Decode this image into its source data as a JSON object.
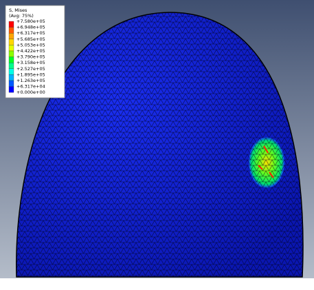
{
  "legend": {
    "title": "S, Mises",
    "subtitle": "(Avg: 75%)",
    "labels": [
      "+7.580e+05",
      "+6.948e+05",
      "+6.317e+05",
      "+5.685e+05",
      "+5.053e+05",
      "+4.422e+05",
      "+3.790e+05",
      "+3.158e+05",
      "+2.527e+05",
      "+1.895e+05",
      "+1.263e+05",
      "+6.317e+04",
      "+0.000e+00"
    ],
    "colors": [
      "#ff0000",
      "#ff5a00",
      "#ffa500",
      "#ffd700",
      "#e6ff00",
      "#8cff00",
      "#00ff28",
      "#00ff8c",
      "#00ffe6",
      "#00b4ff",
      "#005aff",
      "#0000ff"
    ]
  }
}
